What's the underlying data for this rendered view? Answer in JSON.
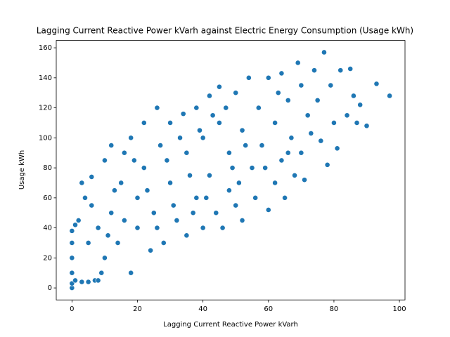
{
  "chart_data": {
    "type": "scatter",
    "title": "Lagging Current Reactive Power kVarh against Electric Energy Consumption (Usage kWh)",
    "x_label": "Lagging Current Reactive Power kVarh",
    "y_label": "Usage kWh",
    "color": "#1f77b4",
    "xlim": [
      -4.8,
      101.7
    ],
    "ylim": [
      -8.0,
      164.9
    ],
    "xticks": [
      0,
      20,
      40,
      60,
      80,
      100
    ],
    "yticks": [
      0,
      20,
      40,
      60,
      80,
      100,
      120,
      140,
      160
    ],
    "x": [
      0,
      0,
      0,
      0,
      0,
      0,
      1,
      2,
      3,
      4,
      5,
      5,
      6,
      7,
      8,
      8,
      10,
      10,
      12,
      12,
      14,
      15,
      16,
      18,
      18,
      20,
      20,
      22,
      22,
      24,
      25,
      26,
      27,
      28,
      30,
      30,
      32,
      34,
      35,
      35,
      38,
      38,
      40,
      40,
      42,
      42,
      44,
      45,
      45,
      46,
      48,
      48,
      50,
      50,
      52,
      52,
      54,
      55,
      56,
      57,
      58,
      60,
      60,
      62,
      62,
      64,
      64,
      65,
      66,
      67,
      68,
      69,
      70,
      70,
      71,
      72,
      73,
      74,
      75,
      76,
      77,
      78,
      79,
      80,
      81,
      82,
      84,
      85,
      86,
      87,
      88,
      90,
      93,
      97,
      3,
      1,
      6,
      9,
      11,
      13,
      16,
      19,
      23,
      26,
      29,
      31,
      33,
      36,
      37,
      39,
      41,
      43,
      47,
      49,
      51,
      53,
      59,
      63,
      66
    ],
    "series": [
      {
        "name": "Usage kWh",
        "values": [
          0,
          3,
          10,
          20,
          30,
          38,
          5,
          45,
          4,
          60,
          4,
          30,
          74,
          5,
          40,
          5,
          85,
          20,
          95,
          50,
          30,
          70,
          90,
          10,
          100,
          60,
          40,
          110,
          80,
          25,
          50,
          120,
          95,
          30,
          110,
          70,
          45,
          116,
          90,
          35,
          120,
          60,
          40,
          100,
          128,
          75,
          50,
          134,
          110,
          40,
          90,
          65,
          130,
          55,
          105,
          45,
          140,
          80,
          60,
          120,
          95,
          140,
          52,
          110,
          70,
          143,
          85,
          60,
          125,
          100,
          75,
          150,
          135,
          90,
          72,
          115,
          103,
          145,
          125,
          98,
          157,
          82,
          135,
          110,
          93,
          145,
          115,
          146,
          128,
          110,
          122,
          108,
          136,
          128,
          70,
          42,
          55,
          10,
          35,
          65,
          45,
          85,
          65,
          40,
          85,
          55,
          100,
          75,
          50,
          105,
          60,
          115,
          120,
          80,
          70,
          95,
          80,
          130,
          90
        ]
      }
    ]
  }
}
